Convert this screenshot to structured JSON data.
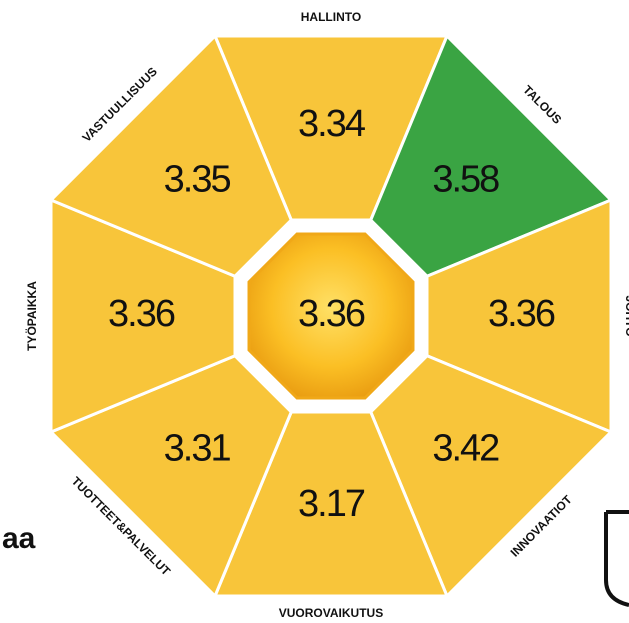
{
  "segments": [
    {
      "label": "HALLINTO",
      "value": "3.34",
      "color": "#f8c53a"
    },
    {
      "label": "TALOUS",
      "value": "3.58",
      "color": "#3aa443"
    },
    {
      "label": "JOHTO",
      "value": "3.36",
      "color": "#f8c53a"
    },
    {
      "label": "INNOVAATIOT",
      "value": "3.42",
      "color": "#f8c53a"
    },
    {
      "label": "VUOROVAIKUTUS",
      "value": "3.17",
      "color": "#f8c53a"
    },
    {
      "label": "TUOTTEET&PALVELUT",
      "value": "3.31",
      "color": "#f8c53a"
    },
    {
      "label": "TYÖPAIKKA",
      "value": "3.36",
      "color": "#f8c53a"
    },
    {
      "label": "VASTUULLISUUS",
      "value": "3.35",
      "color": "#f8c53a"
    }
  ],
  "center": {
    "value": "3.36"
  },
  "fragment": "aa"
}
